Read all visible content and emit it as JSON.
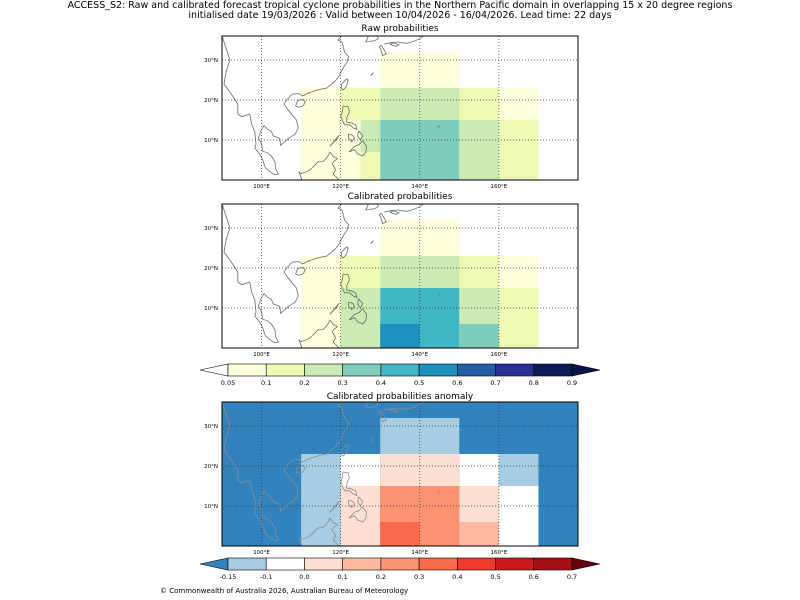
{
  "header": {
    "line1": "ACCESS_S2: Raw and calibrated forecast tropical cyclone probabilities in the Northern Pacific domain in overlapping 15 x 20 degree regions",
    "line2": "initialised date 19/03/2026 :  Valid between 10/04/2026 - 16/04/2026. Lead time: 22 days"
  },
  "panels": {
    "raw": {
      "title": "Raw probabilities",
      "cells": [
        {
          "lon": [
            110,
            120
          ],
          "lat": [
            0,
            23
          ],
          "color": "#ffffdd"
        },
        {
          "lon": [
            120,
            130
          ],
          "lat": [
            15,
            23
          ],
          "color": "#eef9b4"
        },
        {
          "lon": [
            120,
            125
          ],
          "lat": [
            0,
            15
          ],
          "color": "#ffffdd"
        },
        {
          "lon": [
            125,
            130
          ],
          "lat": [
            7,
            15
          ],
          "color": "#cbebb5"
        },
        {
          "lon": [
            125,
            130
          ],
          "lat": [
            0,
            7
          ],
          "color": "#eef9b4"
        },
        {
          "lon": [
            130,
            150
          ],
          "lat": [
            23,
            32
          ],
          "color": "#ffffdd"
        },
        {
          "lon": [
            130,
            150
          ],
          "lat": [
            15,
            23
          ],
          "color": "#cbebb5"
        },
        {
          "lon": [
            130,
            150
          ],
          "lat": [
            0,
            15
          ],
          "color": "#7fcdbb"
        },
        {
          "lon": [
            150,
            160
          ],
          "lat": [
            15,
            23
          ],
          "color": "#eef9b4"
        },
        {
          "lon": [
            150,
            160
          ],
          "lat": [
            0,
            15
          ],
          "color": "#cbebb5"
        },
        {
          "lon": [
            160,
            170
          ],
          "lat": [
            15,
            23
          ],
          "color": "#ffffdd"
        },
        {
          "lon": [
            160,
            170
          ],
          "lat": [
            0,
            15
          ],
          "color": "#eef9b4"
        }
      ]
    },
    "calibrated": {
      "title": "Calibrated probabilities",
      "cells": [
        {
          "lon": [
            110,
            120
          ],
          "lat": [
            0,
            23
          ],
          "color": "#ffffdd"
        },
        {
          "lon": [
            120,
            130
          ],
          "lat": [
            15,
            23
          ],
          "color": "#eef9b4"
        },
        {
          "lon": [
            120,
            130
          ],
          "lat": [
            0,
            15
          ],
          "color": "#cbebb5"
        },
        {
          "lon": [
            130,
            150
          ],
          "lat": [
            23,
            32
          ],
          "color": "#ffffdd"
        },
        {
          "lon": [
            130,
            150
          ],
          "lat": [
            15,
            23
          ],
          "color": "#cbebb5"
        },
        {
          "lon": [
            130,
            150
          ],
          "lat": [
            0,
            15
          ],
          "color": "#41b6c4"
        },
        {
          "lon": [
            130,
            140
          ],
          "lat": [
            0,
            6
          ],
          "color": "#1d91c0"
        },
        {
          "lon": [
            150,
            160
          ],
          "lat": [
            15,
            23
          ],
          "color": "#eef9b4"
        },
        {
          "lon": [
            150,
            160
          ],
          "lat": [
            6,
            15
          ],
          "color": "#cbebb5"
        },
        {
          "lon": [
            150,
            160
          ],
          "lat": [
            0,
            6
          ],
          "color": "#7fcdbb"
        },
        {
          "lon": [
            160,
            170
          ],
          "lat": [
            15,
            23
          ],
          "color": "#ffffdd"
        },
        {
          "lon": [
            160,
            170
          ],
          "lat": [
            0,
            15
          ],
          "color": "#eef9b4"
        }
      ]
    },
    "anomaly": {
      "title": "Calibrated probabilities anomaly",
      "background": "#3182bd",
      "cells": [
        {
          "lon": [
            110,
            120
          ],
          "lat": [
            0,
            23
          ],
          "color": "#a6cde2"
        },
        {
          "lon": [
            120,
            130
          ],
          "lat": [
            15,
            23
          ],
          "color": "#ffffff"
        },
        {
          "lon": [
            120,
            130
          ],
          "lat": [
            0,
            15
          ],
          "color": "#fee0d2"
        },
        {
          "lon": [
            130,
            150
          ],
          "lat": [
            23,
            32
          ],
          "color": "#a6cde2"
        },
        {
          "lon": [
            130,
            150
          ],
          "lat": [
            15,
            23
          ],
          "color": "#fee0d2"
        },
        {
          "lon": [
            130,
            150
          ],
          "lat": [
            0,
            15
          ],
          "color": "#fc9272"
        },
        {
          "lon": [
            130,
            140
          ],
          "lat": [
            0,
            6
          ],
          "color": "#fb6a4a"
        },
        {
          "lon": [
            150,
            160
          ],
          "lat": [
            15,
            23
          ],
          "color": "#ffffff"
        },
        {
          "lon": [
            150,
            160
          ],
          "lat": [
            6,
            15
          ],
          "color": "#fee0d2"
        },
        {
          "lon": [
            150,
            160
          ],
          "lat": [
            0,
            6
          ],
          "color": "#fcbba1"
        },
        {
          "lon": [
            160,
            170
          ],
          "lat": [
            15,
            23
          ],
          "color": "#a6cde2"
        },
        {
          "lon": [
            160,
            170
          ],
          "lat": [
            0,
            15
          ],
          "color": "#ffffff"
        }
      ]
    }
  },
  "axes": {
    "lon_range": [
      90,
      180
    ],
    "lat_range": [
      0,
      36
    ],
    "lon_ticks": [
      100,
      120,
      140,
      160
    ],
    "lon_tick_labels": [
      "100°E",
      "120°E",
      "140°E",
      "160°E"
    ],
    "lat_ticks": [
      10,
      20,
      30
    ],
    "lat_tick_labels": [
      "10°N",
      "20°N",
      "30°N"
    ]
  },
  "colorbar_probability": {
    "labels": [
      "0.05",
      "0.1",
      "0.2",
      "0.3",
      "0.4",
      "0.5",
      "0.6",
      "0.7",
      "0.8",
      "0.9"
    ],
    "colors": [
      "#ffffdd",
      "#eef9b4",
      "#cbebb5",
      "#7fcdbb",
      "#41b6c4",
      "#1d91c0",
      "#225ea8",
      "#253494",
      "#081d58"
    ],
    "under_color": "#ffffff",
    "over_color": "#051545"
  },
  "colorbar_anomaly": {
    "labels": [
      "-0.15",
      "-0.1",
      "0.0",
      "0.1",
      "0.2",
      "0.3",
      "0.4",
      "0.5",
      "0.6",
      "0.7"
    ],
    "colors": [
      "#a6cde2",
      "#ffffff",
      "#fee0d2",
      "#fcbba1",
      "#fc9272",
      "#fb6a4a",
      "#ef3b2c",
      "#cb181d",
      "#a50f15"
    ],
    "under_color": "#3182bd",
    "over_color": "#67000d"
  },
  "footer": "© Commonwealth of Australia 2026, Australian Bureau of Meteorology"
}
